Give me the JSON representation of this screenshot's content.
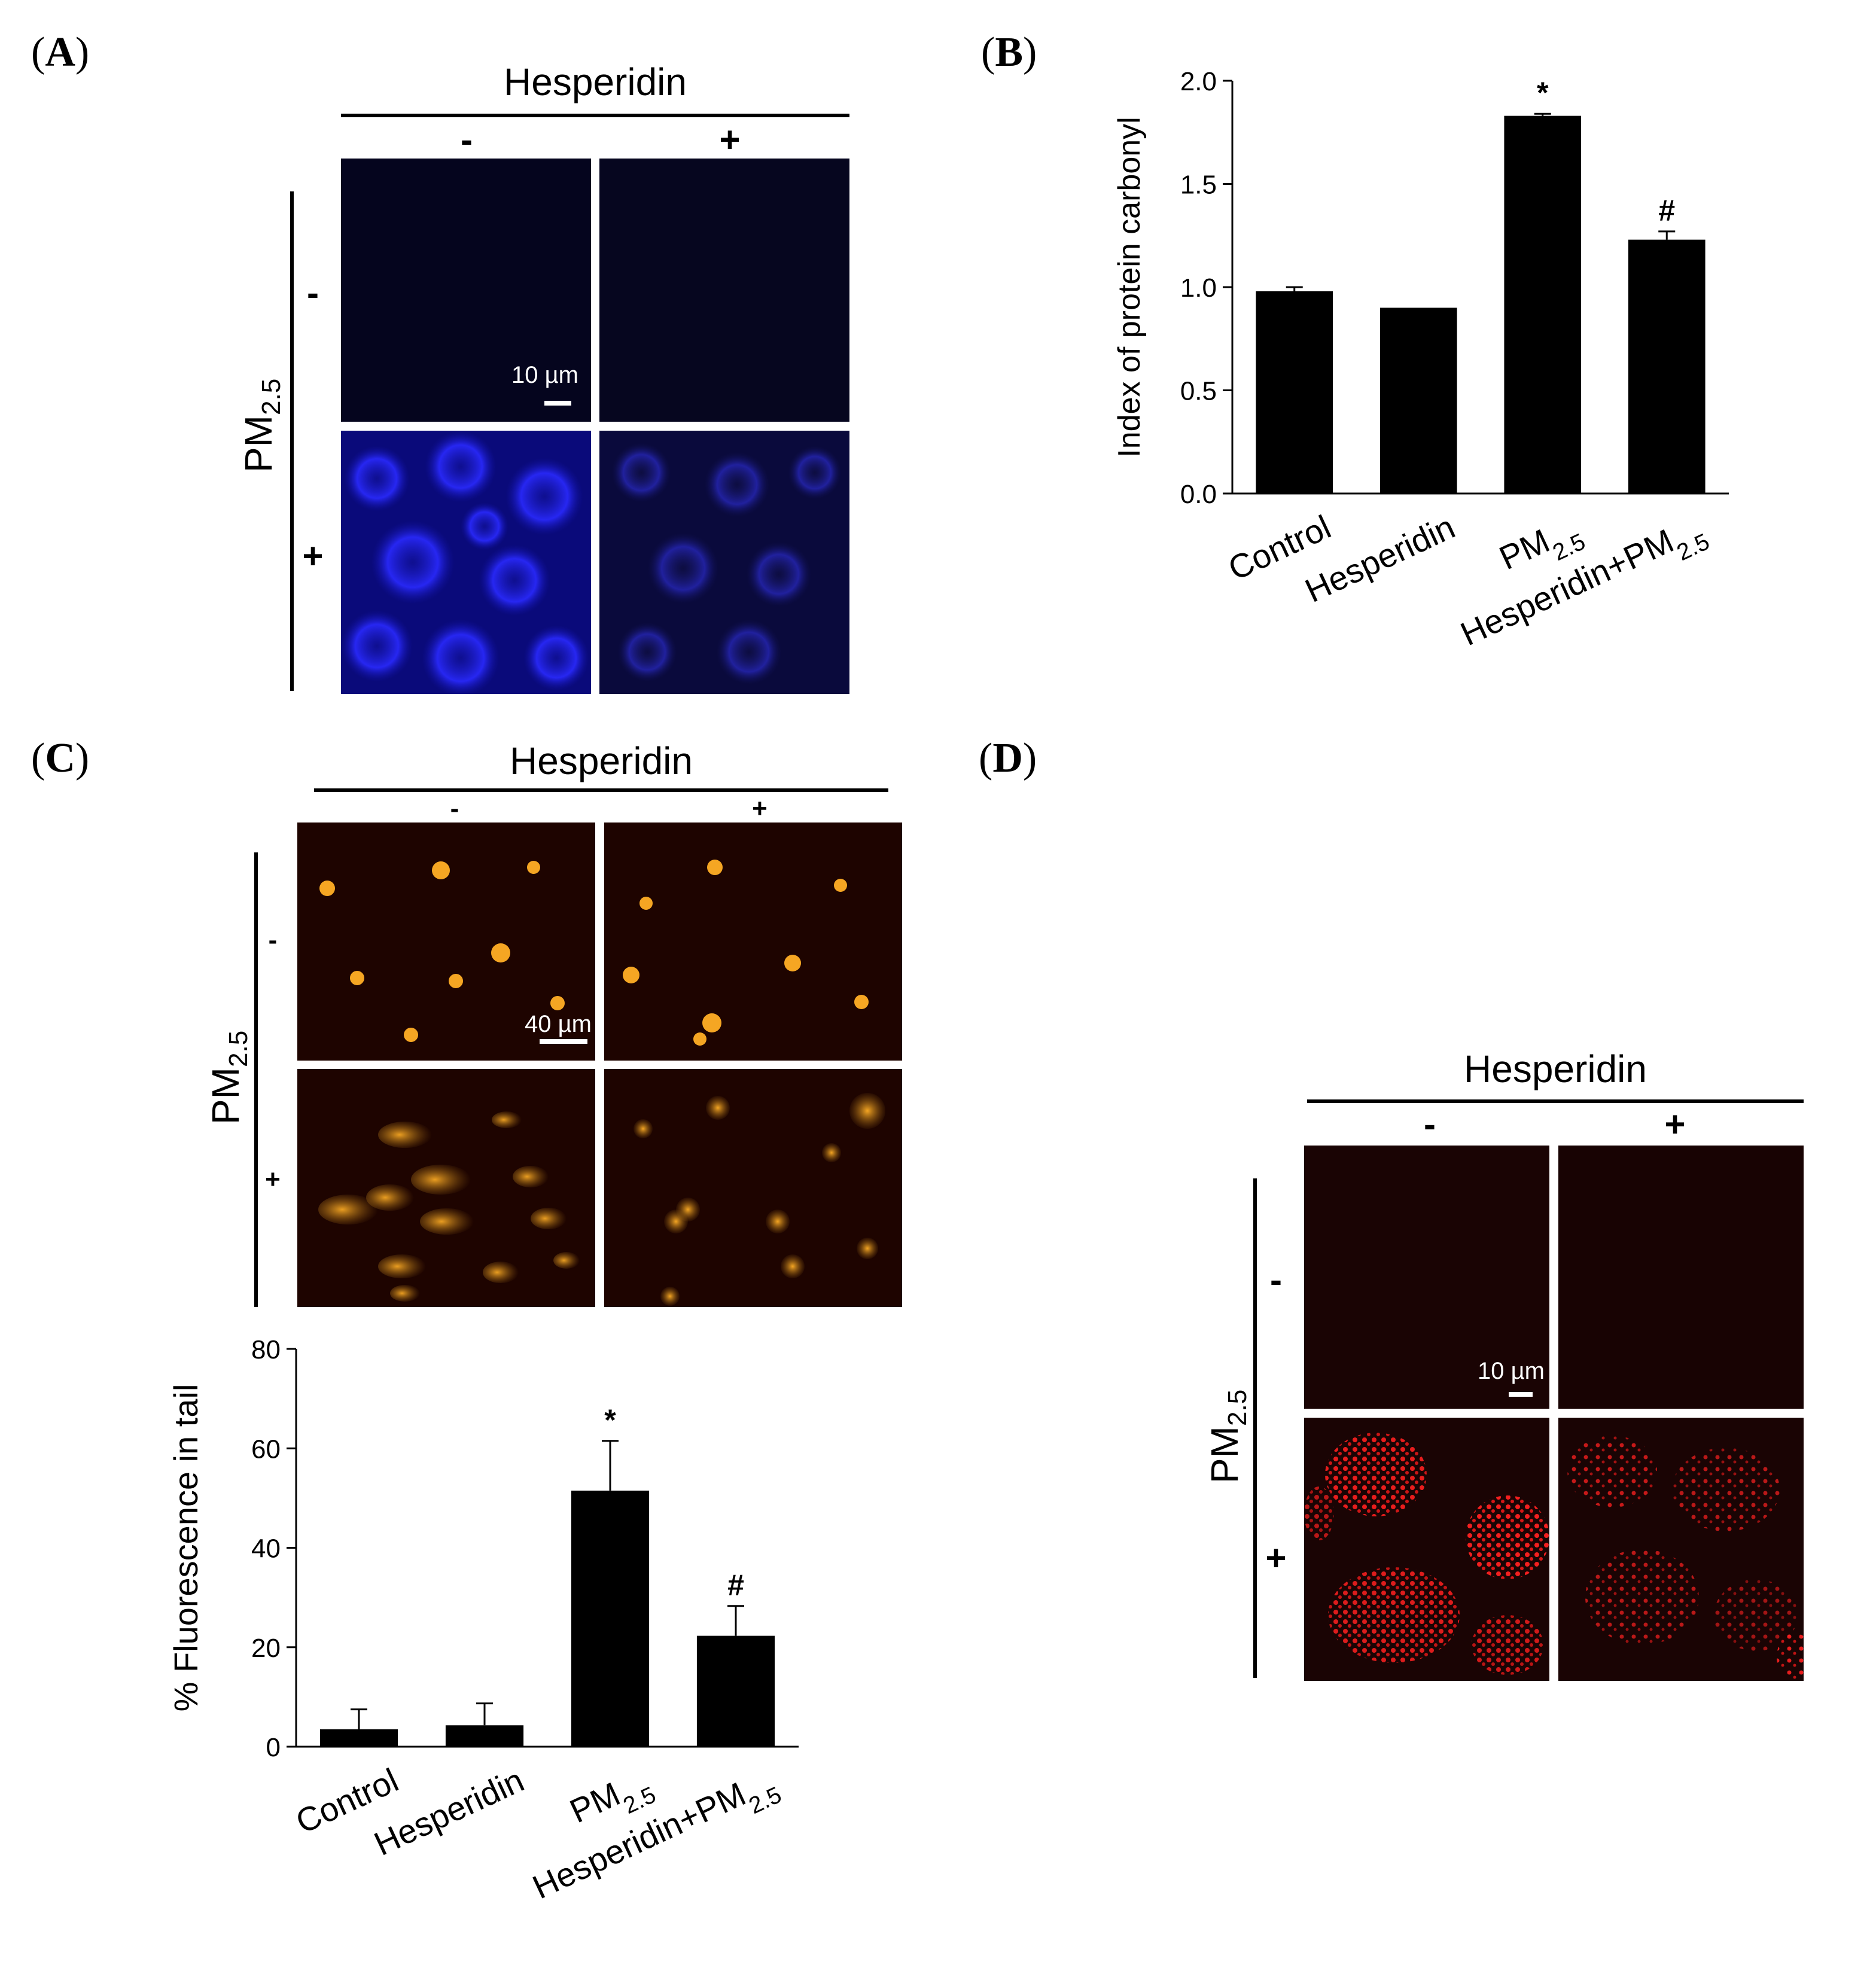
{
  "panels": {
    "A": {
      "label": "A",
      "treatment_title": "Hesperidin",
      "col_minus": "-",
      "col_plus": "+",
      "row_label": "PM",
      "row_label_sub": "2.5",
      "row_minus": "-",
      "row_plus": "+",
      "scale_text": "10 µm",
      "stain_color": "#1a1aff"
    },
    "B": {
      "label": "B"
    },
    "C": {
      "label": "C",
      "treatment_title": "Hesperidin",
      "col_minus": "-",
      "col_plus": "+",
      "row_label": "PM",
      "row_label_sub": "2.5",
      "row_minus": "-",
      "row_plus": "+",
      "scale_text": "40 µm",
      "stain_color": "#f5a623"
    },
    "D": {
      "label": "D",
      "treatment_title": "Hesperidin",
      "col_minus": "-",
      "col_plus": "+",
      "row_label": "PM",
      "row_label_sub": "2.5",
      "row_minus": "-",
      "row_plus": "+",
      "scale_text": "10 µm",
      "stain_color": "#ff2020"
    }
  },
  "chart_data": [
    {
      "id": "B",
      "type": "bar",
      "categories": [
        "Control",
        "Hesperidin",
        "PM2.5",
        "Hesperidin+PM2.5"
      ],
      "values": [
        0.98,
        0.9,
        1.83,
        1.23
      ],
      "errors": [
        0.02,
        0.0,
        0.01,
        0.04
      ],
      "annotations": [
        "",
        "",
        "*",
        "#"
      ],
      "ylabel": "Index of protein carbonyl",
      "ylim": [
        0,
        2.0
      ],
      "yticks": [
        "0.0",
        "0.5",
        "1.0",
        "1.5",
        "2.0"
      ],
      "tick_values": [
        0,
        0.5,
        1.0,
        1.5,
        2.0
      ],
      "bar_color": "#000000"
    },
    {
      "id": "C",
      "type": "bar",
      "categories": [
        "Control",
        "Hesperidin",
        "PM2.5",
        "Hesperidin+PM2.5"
      ],
      "values": [
        3.5,
        4.3,
        51.5,
        22.3
      ],
      "errors": [
        4.0,
        4.4,
        10.0,
        6.0
      ],
      "annotations": [
        "",
        "",
        "*",
        "#"
      ],
      "ylabel": "% Fluorescence in tail",
      "ylim": [
        0,
        80
      ],
      "yticks": [
        "0",
        "20",
        "40",
        "60",
        "80"
      ],
      "tick_values": [
        0,
        20,
        40,
        60,
        80
      ],
      "bar_color": "#000000"
    }
  ]
}
